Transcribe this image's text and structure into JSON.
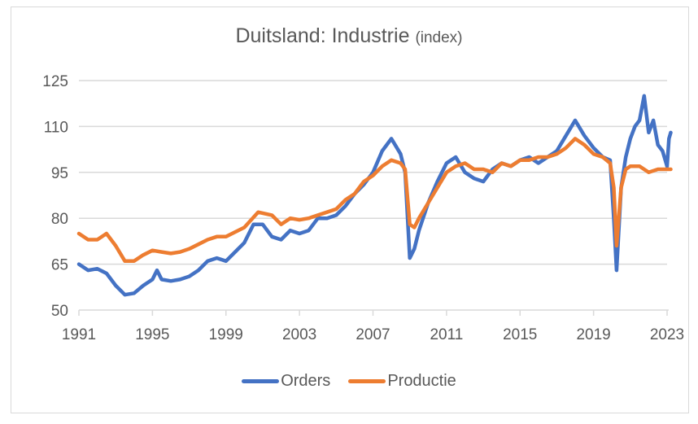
{
  "chart_data": {
    "type": "line",
    "title": "Duitsland: Industrie",
    "subtitle": "(index)",
    "xlabel": "",
    "ylabel": "",
    "ylim": [
      50,
      125
    ],
    "xlim": [
      1991,
      2023.2
    ],
    "yticks": [
      "125",
      "110",
      "95",
      "80",
      "65",
      "50"
    ],
    "ytick_values": [
      125,
      110,
      95,
      80,
      65,
      50
    ],
    "xticks": [
      "1991",
      "1995",
      "1999",
      "2003",
      "2007",
      "2011",
      "2015",
      "2019",
      "2023"
    ],
    "xtick_values": [
      1991,
      1995,
      1999,
      2003,
      2007,
      2011,
      2015,
      2019,
      2023
    ],
    "grid": true,
    "legend_position": "bottom",
    "series": [
      {
        "name": "Orders",
        "color": "#4472c4",
        "x": [
          1991,
          1991.5,
          1992,
          1992.5,
          1993,
          1993.5,
          1994,
          1994.5,
          1995,
          1995.25,
          1995.5,
          1996,
          1996.5,
          1997,
          1997.5,
          1998,
          1998.5,
          1999,
          1999.5,
          2000,
          2000.5,
          2001,
          2001.5,
          2002,
          2002.5,
          2003,
          2003.5,
          2004,
          2004.5,
          2005,
          2005.5,
          2006,
          2006.5,
          2007,
          2007.5,
          2008,
          2008.5,
          2008.75,
          2009,
          2009.25,
          2009.5,
          2010,
          2010.5,
          2011,
          2011.5,
          2012,
          2012.5,
          2013,
          2013.5,
          2014,
          2014.5,
          2015,
          2015.5,
          2016,
          2016.5,
          2017,
          2017.5,
          2018,
          2018.5,
          2019,
          2019.5,
          2019.9,
          2020.1,
          2020.25,
          2020.5,
          2020.75,
          2021,
          2021.25,
          2021.5,
          2021.75,
          2022,
          2022.25,
          2022.5,
          2022.75,
          2023,
          2023.1,
          2023.2
        ],
        "values": [
          65,
          63,
          63.5,
          62,
          58,
          55,
          55.5,
          58,
          60,
          63,
          60,
          59.5,
          60,
          61,
          63,
          66,
          67,
          66,
          69,
          72,
          78,
          78,
          74,
          73,
          76,
          75,
          76,
          80,
          80,
          81,
          84,
          88,
          91,
          95,
          102,
          106,
          101,
          95,
          67,
          70,
          76,
          85,
          92,
          98,
          100,
          95,
          93,
          92,
          96,
          98,
          97,
          99,
          100,
          98,
          100,
          102,
          107,
          112,
          107,
          103,
          100,
          99,
          80,
          63,
          90,
          100,
          106,
          110,
          112,
          120,
          108,
          112,
          104,
          102,
          97,
          106,
          108
        ]
      },
      {
        "name": "Productie",
        "color": "#ed7d31",
        "x": [
          1991,
          1991.5,
          1992,
          1992.5,
          1993,
          1993.5,
          1994,
          1994.5,
          1995,
          1995.5,
          1996,
          1996.5,
          1997,
          1997.5,
          1998,
          1998.5,
          1999,
          1999.5,
          2000,
          2000.75,
          2001.5,
          2002,
          2002.5,
          2003,
          2003.5,
          2004,
          2004.5,
          2005,
          2005.5,
          2006,
          2006.5,
          2007,
          2007.5,
          2008,
          2008.5,
          2008.75,
          2009,
          2009.25,
          2009.5,
          2010,
          2010.5,
          2011,
          2011.5,
          2012,
          2012.5,
          2013,
          2013.5,
          2014,
          2014.5,
          2015,
          2015.5,
          2016,
          2016.5,
          2017,
          2017.5,
          2018,
          2018.5,
          2019,
          2019.5,
          2019.9,
          2020.1,
          2020.25,
          2020.5,
          2020.75,
          2021,
          2021.5,
          2022,
          2022.5,
          2023,
          2023.2
        ],
        "values": [
          75,
          73,
          73,
          75,
          71,
          66,
          66,
          68,
          69.5,
          69,
          68.5,
          69,
          70,
          71.5,
          73,
          74,
          74,
          75.5,
          77,
          82,
          81,
          78,
          80,
          79.5,
          80,
          81,
          82,
          83,
          86,
          88,
          92,
          94,
          97,
          99,
          98,
          96,
          78,
          77,
          80,
          85,
          90,
          95,
          97,
          98,
          96,
          96,
          95,
          98,
          97,
          99,
          99,
          100,
          100,
          101,
          103,
          106,
          104,
          101,
          100,
          98,
          90,
          71,
          90,
          96,
          97,
          97,
          95,
          96,
          96,
          96
        ]
      }
    ]
  }
}
